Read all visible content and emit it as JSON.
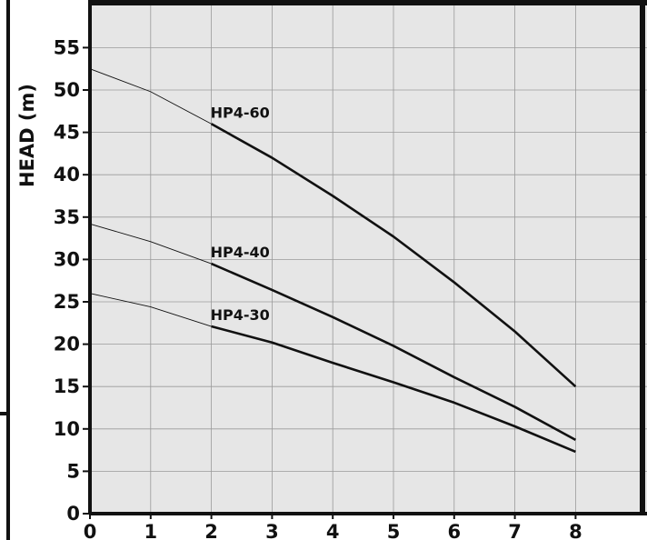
{
  "chart_data": {
    "type": "line",
    "ylabel": "HEAD (m)",
    "xlabel": "",
    "xlim": [
      0,
      8.7
    ],
    "ylim": [
      0,
      59
    ],
    "x_ticks": [
      "0",
      "1",
      "2",
      "3",
      "4",
      "5",
      "6",
      "7",
      "8"
    ],
    "y_ticks": [
      "0",
      "5",
      "10",
      "15",
      "20",
      "25",
      "30",
      "35",
      "40",
      "45",
      "50",
      "55"
    ],
    "grid": true,
    "series": [
      {
        "name": "HP4-60",
        "x": [
          0,
          1,
          2,
          3,
          4,
          5,
          6,
          7,
          8
        ],
        "y": [
          52.5,
          49.8,
          46.0,
          42.0,
          37.5,
          32.7,
          27.3,
          21.5,
          15.0
        ]
      },
      {
        "name": "HP4-40",
        "x": [
          0,
          1,
          2,
          3,
          4,
          5,
          6,
          7,
          8
        ],
        "y": [
          34.2,
          32.1,
          29.5,
          26.4,
          23.2,
          19.8,
          16.1,
          12.6,
          8.7
        ]
      },
      {
        "name": "HP4-30",
        "x": [
          0,
          1,
          2,
          3,
          4,
          5,
          6,
          7,
          8
        ],
        "y": [
          26.0,
          24.4,
          22.1,
          20.2,
          17.8,
          15.5,
          13.1,
          10.3,
          7.3
        ]
      }
    ]
  },
  "colors": {
    "plot_background": "#e6e6e6",
    "grid": "#9a9a9a",
    "axis": "#111111",
    "line": "#111111"
  }
}
